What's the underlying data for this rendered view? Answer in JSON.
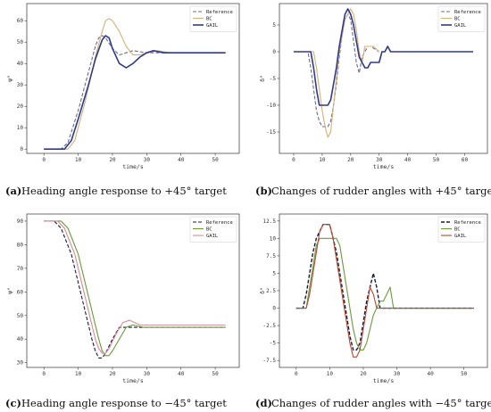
{
  "chart_data": [
    {
      "id": "a",
      "type": "line",
      "caption_label": "(a)",
      "caption_text": "Heading angle response to +45° target",
      "xlabel": "time/s",
      "ylabel": "ψ°",
      "xlim": [
        -5,
        57
      ],
      "ylim": [
        -2,
        68
      ],
      "xticks": [
        0,
        10,
        20,
        30,
        40,
        50
      ],
      "yticks": [
        0,
        10,
        20,
        30,
        40,
        50,
        60
      ],
      "legend_position": "top-right",
      "series": [
        {
          "name": "Reference",
          "color": "#6b6b8c",
          "dash": "4,2",
          "width": 1.1,
          "x": [
            0,
            5,
            7,
            10,
            13,
            15,
            16,
            17,
            18,
            20,
            22,
            24,
            26,
            30,
            35,
            53
          ],
          "y": [
            0,
            0,
            3,
            18,
            36,
            48,
            52,
            53,
            52,
            47,
            44,
            45,
            46,
            45,
            45,
            45
          ]
        },
        {
          "name": "BC",
          "color": "#d4b07a",
          "dash": "",
          "width": 1.1,
          "x": [
            0,
            7,
            9,
            12,
            15,
            17,
            18,
            19,
            20,
            22,
            24,
            26,
            28,
            30,
            33,
            37,
            53
          ],
          "y": [
            0,
            0,
            4,
            22,
            43,
            55,
            60,
            61,
            60,
            55,
            48,
            44,
            44,
            45,
            46,
            45,
            45
          ]
        },
        {
          "name": "GAIL",
          "color": "#2e3a8c",
          "dash": "",
          "width": 1.6,
          "x": [
            0,
            6,
            8,
            10,
            13,
            15,
            17,
            18,
            19,
            20,
            22,
            24,
            26,
            28,
            30,
            32,
            35,
            40,
            53
          ],
          "y": [
            0,
            0,
            4,
            14,
            30,
            42,
            51,
            53,
            52,
            47,
            40,
            38,
            40,
            43,
            45,
            46,
            45,
            45,
            45
          ]
        }
      ]
    },
    {
      "id": "b",
      "type": "line",
      "caption_label": "(b)",
      "caption_text": "Changes of rudder angles with +45° target",
      "xlabel": "time/s",
      "ylabel": "δ°",
      "xlim": [
        -5,
        68
      ],
      "ylim": [
        -19,
        9
      ],
      "xticks": [
        0,
        10,
        20,
        30,
        40,
        50,
        60
      ],
      "yticks": [
        -15,
        -10,
        -5,
        0,
        5
      ],
      "legend_position": "top-right",
      "series": [
        {
          "name": "Reference",
          "color": "#6b6b8c",
          "dash": "4,2",
          "width": 1.1,
          "x": [
            0,
            5,
            6,
            7,
            8,
            9,
            10,
            12,
            13,
            14,
            15,
            16,
            17,
            18,
            19,
            20,
            21,
            22,
            23,
            24,
            26,
            27,
            30
          ],
          "y": [
            0,
            0,
            -3,
            -7,
            -11,
            -13,
            -14,
            -14,
            -13,
            -10,
            -6,
            -1,
            3,
            6,
            7,
            6,
            2,
            -2,
            -4,
            -1,
            1,
            1,
            0
          ]
        },
        {
          "name": "BC",
          "color": "#d4b07a",
          "dash": "",
          "width": 1.1,
          "x": [
            0,
            7,
            8,
            9,
            10,
            11,
            12,
            13,
            14,
            15,
            16,
            17,
            18,
            19,
            20,
            21,
            22,
            23,
            24,
            25,
            28,
            30
          ],
          "y": [
            0,
            0,
            -3,
            -7,
            -11,
            -14,
            -16,
            -15,
            -10,
            -5,
            0,
            3,
            6,
            7,
            8,
            7,
            4,
            0,
            -2,
            1,
            1,
            0
          ]
        },
        {
          "name": "GAIL",
          "color": "#2e3a8c",
          "dash": "",
          "width": 1.6,
          "x": [
            0,
            6,
            7,
            8,
            9,
            12,
            13,
            14,
            15,
            16,
            17,
            18,
            19,
            20,
            21,
            22,
            23,
            24,
            25,
            26,
            27,
            30,
            31,
            32,
            33,
            34,
            63
          ],
          "y": [
            0,
            0,
            -3,
            -7,
            -10,
            -10,
            -9,
            -6,
            -3,
            1,
            4,
            7,
            8,
            7,
            5,
            2,
            -1,
            -2,
            -3,
            -3,
            -2,
            -2,
            0,
            0,
            1,
            0,
            0
          ]
        }
      ]
    },
    {
      "id": "c",
      "type": "line",
      "caption_label": "(c)",
      "caption_text": "Heading angle response to −45° target",
      "xlabel": "time/s",
      "ylabel": "ψ°",
      "xlim": [
        -5,
        57
      ],
      "ylim": [
        28,
        93
      ],
      "xticks": [
        0,
        10,
        20,
        30,
        40,
        50
      ],
      "yticks": [
        30,
        40,
        50,
        60,
        70,
        80,
        90
      ],
      "legend_position": "top-right",
      "series": [
        {
          "name": "Reference",
          "color": "#1a1a3c",
          "dash": "4,2",
          "width": 1.1,
          "x": [
            0,
            3,
            5,
            8,
            11,
            14,
            15,
            16,
            17,
            18,
            20,
            22,
            24,
            27,
            53
          ],
          "y": [
            90,
            90,
            87,
            76,
            58,
            40,
            35,
            32,
            32,
            34,
            40,
            45,
            45,
            45,
            45
          ]
        },
        {
          "name": "BC",
          "color": "#6a9a3a",
          "dash": "",
          "width": 1.1,
          "x": [
            0,
            5,
            7,
            10,
            13,
            16,
            17,
            18,
            19,
            20,
            22,
            24,
            26,
            29,
            53
          ],
          "y": [
            90,
            90,
            87,
            76,
            58,
            40,
            35,
            33,
            33,
            35,
            40,
            45,
            46,
            45,
            45
          ]
        },
        {
          "name": "GAIL",
          "color": "#d98a9a",
          "dash": "",
          "width": 1.1,
          "x": [
            0,
            4,
            6,
            9,
            12,
            15,
            16,
            17,
            18,
            19,
            21,
            23,
            25,
            28,
            53
          ],
          "y": [
            90,
            90,
            87,
            76,
            58,
            40,
            36,
            34,
            34,
            36,
            42,
            47,
            48,
            46,
            46
          ]
        }
      ]
    },
    {
      "id": "d",
      "type": "line",
      "caption_label": "(d)",
      "caption_text": "Changes of rudder angles with −45° target",
      "xlabel": "time/s",
      "ylabel": "δ°",
      "xlim": [
        -5,
        57
      ],
      "ylim": [
        -8.5,
        13.5
      ],
      "xticks": [
        0,
        10,
        20,
        30,
        40,
        50
      ],
      "yticks": [
        -7.5,
        -5.0,
        -2.5,
        0.0,
        2.5,
        5.0,
        7.5,
        10.0,
        12.5
      ],
      "legend_position": "top-right",
      "series": [
        {
          "name": "Reference",
          "color": "#1a1a3c",
          "dash": "4,2",
          "width": 1.4,
          "x": [
            0,
            2,
            3,
            4,
            5,
            6,
            8,
            10,
            11,
            12,
            13,
            14,
            15,
            16,
            17,
            18,
            19,
            20,
            21,
            22,
            23,
            24,
            25,
            26,
            53
          ],
          "y": [
            0,
            0,
            2,
            5,
            8,
            10,
            12,
            12,
            10,
            8,
            5,
            2,
            -1,
            -4,
            -6,
            -6,
            -5,
            -2,
            1,
            3,
            5,
            3,
            0,
            0,
            0
          ]
        },
        {
          "name": "BC",
          "color": "#6a9a3a",
          "dash": "",
          "width": 1.1,
          "x": [
            0,
            3,
            4,
            5,
            6,
            7,
            12,
            13,
            14,
            15,
            16,
            17,
            18,
            19,
            20,
            21,
            22,
            23,
            24,
            25,
            26,
            27,
            28,
            29,
            53
          ],
          "y": [
            0,
            0,
            3,
            6,
            9,
            10,
            10,
            9,
            6,
            3,
            0,
            -3,
            -5,
            -6,
            -6,
            -5,
            -3,
            -1,
            0,
            1,
            1,
            2,
            3,
            0,
            0
          ]
        },
        {
          "name": "GAIL",
          "color": "#b84a30",
          "dash": "",
          "width": 1.1,
          "x": [
            0,
            3,
            4,
            5,
            6,
            7,
            8,
            10,
            11,
            12,
            13,
            14,
            15,
            16,
            17,
            18,
            19,
            20,
            21,
            22,
            23,
            24,
            25,
            53
          ],
          "y": [
            0,
            0,
            2,
            5,
            8,
            11,
            12,
            12,
            10,
            7,
            4,
            1,
            -2,
            -5,
            -7,
            -7,
            -6,
            -3,
            0,
            3,
            2,
            0,
            0,
            0
          ]
        }
      ]
    }
  ]
}
